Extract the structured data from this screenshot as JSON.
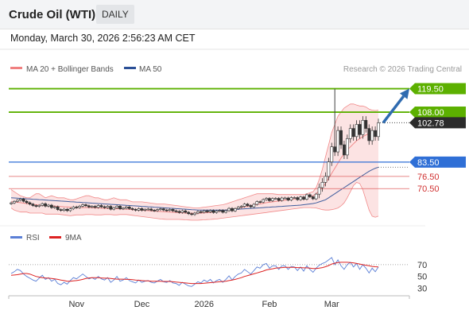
{
  "header": {
    "title": "Crude Oil (WTI)",
    "timeframe": "DAILY"
  },
  "timestamp": "Monday, March 30, 2026 2:56:23 AM CET",
  "colors": {
    "bollinger": "#f08080",
    "ma50": "#2b4f96",
    "resistance": "#5cb000",
    "pivot": "#2f6fd6",
    "support": "#e06060",
    "price_box": "#2c2c2c",
    "arrow": "#2f6bb0",
    "rsi": "#5b7fd6",
    "rsi_ma": "#dd2222"
  },
  "chart_data": [
    {
      "type": "candlestick",
      "legend": [
        {
          "label": "MA 20 + Bollinger Bands",
          "color": "#f08080"
        },
        {
          "label": "MA 50",
          "color": "#2b4f96"
        }
      ],
      "credit": "Research © 2026 Trading Central",
      "x_ticks": [
        "Nov",
        "Dec",
        "2026",
        "Feb",
        "Mar"
      ],
      "ylim": [
        55,
        124
      ],
      "levels": [
        {
          "value": 119.5,
          "label": "119.50",
          "kind": "resistance"
        },
        {
          "value": 108.0,
          "label": "108.00",
          "kind": "resistance"
        },
        {
          "value": 102.78,
          "label": "102.78",
          "kind": "last_price"
        },
        {
          "value": 83.5,
          "label": "83.50",
          "kind": "pivot"
        },
        {
          "value": 76.5,
          "label": "76.50",
          "kind": "support"
        },
        {
          "value": 70.5,
          "label": "70.50",
          "kind": "support"
        }
      ],
      "forecast": {
        "from": 102.78,
        "to": 119.5,
        "direction": "up"
      },
      "close": [
        63.5,
        64.2,
        64.8,
        65.4,
        64.3,
        63.6,
        62.9,
        62.2,
        61.8,
        62.3,
        63.1,
        61.9,
        62.4,
        61.2,
        61.6,
        60.2,
        59.8,
        60.4,
        59.7,
        60.6,
        61.5,
        61.2,
        61.9,
        62.6,
        62.1,
        61.5,
        61.8,
        61.3,
        62.2,
        61.6,
        61.2,
        61.8,
        60.4,
        61.1,
        61.9,
        60.6,
        60.9,
        61.5,
        60.7,
        60.3,
        59.9,
        60.7,
        59.9,
        60.3,
        60.5,
        59.9,
        59.7,
        60.2,
        60.6,
        60.0,
        59.8,
        60.3,
        59.6,
        59.3,
        58.8,
        59.6,
        58.9,
        58.2,
        57.8,
        58.5,
        59.2,
        58.9,
        59.6,
        59.1,
        59.7,
        58.8,
        59.5,
        59.8,
        58.9,
        59.7,
        60.8,
        59.6,
        60.7,
        61.4,
        61.8,
        62.9,
        62.2,
        61.6,
        62.8,
        64.1,
        63.9,
        65.1,
        65.7,
        64.6,
        65.6,
        65.7,
        64.7,
        65.9,
        65.9,
        64.9,
        66.1,
        66.1,
        65.1,
        66.4,
        65.3,
        67.5,
        66.5,
        65.5,
        67.8,
        71.0,
        73.6,
        76.5,
        83.6,
        91.0,
        88.5,
        99.0,
        92.0,
        87.0,
        95.0,
        100.0,
        96.0,
        102.0,
        97.0,
        104.0,
        100.0,
        94.0,
        99.0,
        96.0,
        102.78
      ],
      "bb_upper": [
        70,
        69,
        68,
        67,
        66.5,
        66,
        66,
        67,
        68,
        68,
        67,
        66,
        66.5,
        67,
        66.5,
        66,
        66,
        66,
        65.5,
        65,
        65,
        65.5,
        66,
        66.5,
        67,
        67,
        66.5,
        66,
        66,
        65.5,
        65,
        65,
        65.5,
        66,
        65.5,
        65,
        65,
        65,
        64.5,
        64,
        64,
        64,
        64,
        63.8,
        63.6,
        63.4,
        63.2,
        63,
        63,
        63,
        62.8,
        62.6,
        62.4,
        62.2,
        62,
        61.8,
        61.6,
        61.4,
        61.2,
        61,
        61,
        61.2,
        61.4,
        61.6,
        61.8,
        62,
        62.2,
        62.4,
        62.6,
        63,
        63.5,
        64,
        64.5,
        65,
        65.5,
        66,
        66.5,
        67,
        67.5,
        68,
        68,
        68,
        68,
        68,
        68,
        67.8,
        67.6,
        67.6,
        67.6,
        67.6,
        67.6,
        67.6,
        67.6,
        67.6,
        67.6,
        68,
        68.5,
        69,
        71,
        75,
        80,
        86,
        92,
        98,
        102,
        106,
        108,
        110,
        111,
        112,
        112,
        111.5,
        111,
        111,
        110.5,
        109.5,
        109,
        108.8,
        109
      ],
      "bb_lower": [
        61,
        60,
        59.5,
        59,
        59,
        59,
        58.5,
        58.5,
        58.5,
        58.5,
        58.5,
        58,
        58,
        58,
        58,
        58,
        57.8,
        57.6,
        57.4,
        57.2,
        57.4,
        57.6,
        57.6,
        57.6,
        57.8,
        57.8,
        57.8,
        57.6,
        57.6,
        57.6,
        57.8,
        57.8,
        57.8,
        57.6,
        57.6,
        57.8,
        57.8,
        57.8,
        57.6,
        57.4,
        57.2,
        57,
        56.8,
        56.6,
        56.4,
        56.2,
        56,
        55.8,
        55.6,
        55.5,
        55.4,
        55.4,
        55.4,
        55.4,
        55.4,
        55.3,
        55.2,
        55.1,
        55,
        55,
        55,
        55.1,
        55.2,
        55.3,
        55.4,
        55.5,
        55.6,
        55.8,
        56,
        56.2,
        56.4,
        56.6,
        56.8,
        57,
        57.2,
        57.4,
        57.6,
        57.8,
        58,
        58.2,
        58.4,
        58.6,
        58.8,
        59,
        59.2,
        59.4,
        59.6,
        59.8,
        60,
        60.2,
        60.4,
        60.6,
        60.8,
        61,
        61.2,
        61.2,
        61.2,
        61.1,
        61,
        60.6,
        60.2,
        60,
        60,
        60.2,
        60.5,
        61,
        62,
        63.5,
        66,
        69,
        72,
        73.5,
        73,
        70,
        65,
        60,
        57,
        56.5,
        57
      ],
      "ma20": [
        64,
        64,
        63.8,
        63.6,
        63.4,
        63.2,
        63,
        62.8,
        62.6,
        62.4,
        62.3,
        62.2,
        62.1,
        62,
        61.9,
        61.8,
        61.7,
        61.6,
        61.5,
        61.4,
        61.3,
        61.2,
        61.2,
        61.2,
        61.2,
        61.2,
        61.1,
        61,
        61,
        60.9,
        60.8,
        60.8,
        60.7,
        60.7,
        60.6,
        60.6,
        60.5,
        60.4,
        60.3,
        60.2,
        60.1,
        60,
        59.9,
        59.8,
        59.7,
        59.6,
        59.5,
        59.4,
        59.3,
        59.2,
        59.1,
        59,
        58.9,
        58.8,
        58.7,
        58.6,
        58.5,
        58.4,
        58.4,
        58.4,
        58.4,
        58.5,
        58.6,
        58.7,
        58.8,
        59,
        59.2,
        59.4,
        59.6,
        59.8,
        60,
        60.3,
        60.6,
        60.9,
        61.2,
        61.5,
        61.8,
        62.1,
        62.4,
        62.7,
        63,
        63.3,
        63.6,
        63.8,
        64,
        64.2,
        64.4,
        64.6,
        64.8,
        65,
        65.2,
        65.4,
        65.6,
        65.8,
        66,
        66.3,
        66.6,
        67,
        68,
        69.5,
        71,
        73,
        75.5,
        78,
        80.5,
        83,
        85.5,
        87.5,
        89.5,
        91,
        92.5,
        94,
        95,
        96,
        96.8,
        97.5,
        98,
        98.5,
        99
      ],
      "ma50": [
        66,
        65.9,
        65.8,
        65.7,
        65.6,
        65.5,
        65.4,
        65.3,
        65.2,
        65.1,
        65,
        64.9,
        64.8,
        64.7,
        64.6,
        64.5,
        64.4,
        64.3,
        64.2,
        64.1,
        64,
        63.9,
        63.8,
        63.7,
        63.6,
        63.5,
        63.4,
        63.3,
        63.2,
        63.1,
        63,
        62.9,
        62.8,
        62.7,
        62.6,
        62.5,
        62.4,
        62.3,
        62.2,
        62.1,
        62,
        61.9,
        61.8,
        61.7,
        61.6,
        61.5,
        61.4,
        61.3,
        61.2,
        61.1,
        61,
        60.9,
        60.8,
        60.7,
        60.6,
        60.5,
        60.4,
        60.3,
        60.2,
        60.1,
        60,
        60,
        60,
        60,
        60,
        60,
        60,
        60,
        60,
        60,
        60.1,
        60.2,
        60.3,
        60.4,
        60.5,
        60.6,
        60.7,
        60.8,
        60.9,
        61,
        61.1,
        61.2,
        61.3,
        61.4,
        61.5,
        61.6,
        61.7,
        61.8,
        61.9,
        62,
        62.1,
        62.2,
        62.3,
        62.4,
        62.6,
        62.8,
        63,
        63.2,
        63.5,
        64,
        64.5,
        65,
        66,
        67,
        68,
        69,
        70,
        71,
        72,
        73,
        74,
        75,
        76,
        77,
        78,
        79,
        79.8,
        80.5,
        81
      ],
      "high_spike_value": 119.5
    },
    {
      "type": "line",
      "legend": [
        {
          "label": "RSI",
          "color": "#5b7fd6"
        },
        {
          "label": "9MA",
          "color": "#dd2222"
        }
      ],
      "y_ticks": [
        70,
        50,
        30
      ],
      "ylim": [
        20,
        90
      ],
      "overbought": 70,
      "rsi": [
        55,
        58,
        62,
        60,
        54,
        50,
        47,
        44,
        42,
        47,
        52,
        45,
        48,
        42,
        45,
        38,
        36,
        40,
        37,
        43,
        48,
        46,
        50,
        54,
        50,
        46,
        48,
        45,
        50,
        46,
        44,
        48,
        40,
        44,
        50,
        42,
        44,
        48,
        43,
        41,
        39,
        44,
        40,
        42,
        43,
        40,
        39,
        42,
        45,
        41,
        40,
        43,
        39,
        38,
        35,
        40,
        37,
        34,
        33,
        37,
        41,
        39,
        44,
        41,
        45,
        39,
        43,
        45,
        40,
        45,
        51,
        44,
        50,
        54,
        56,
        62,
        58,
        54,
        60,
        66,
        64,
        70,
        72,
        64,
        68,
        68,
        62,
        68,
        68,
        62,
        67,
        66,
        60,
        66,
        59,
        68,
        62,
        57,
        64,
        69,
        72,
        74,
        78,
        82,
        70,
        78,
        68,
        62,
        70,
        74,
        66,
        72,
        62,
        70,
        64,
        56,
        64,
        58,
        66
      ],
      "rsi_ma": [
        52,
        52.5,
        53,
        54,
        55,
        55,
        54,
        52,
        50,
        49,
        48,
        47.5,
        47,
        46.5,
        46,
        45,
        44,
        43,
        42,
        42,
        42.5,
        43,
        44,
        45,
        46.5,
        47.5,
        48,
        48,
        48,
        47.5,
        47,
        47,
        46.5,
        46,
        45.5,
        45.5,
        45.5,
        45,
        45,
        44.5,
        44,
        43.5,
        43,
        42.5,
        42.5,
        42,
        42,
        42,
        42,
        41.5,
        41.5,
        41.5,
        41,
        40.5,
        40,
        39.5,
        39,
        38.5,
        38,
        38,
        38,
        38,
        38.5,
        39,
        39.5,
        40,
        40.5,
        41,
        41.5,
        42,
        43,
        44,
        45,
        46.5,
        48,
        50,
        51.5,
        53,
        54.5,
        56,
        57.5,
        59,
        61,
        62,
        63,
        64,
        64.5,
        65,
        65.5,
        65.5,
        65.5,
        65.5,
        65,
        65,
        64.5,
        64.5,
        64,
        63.5,
        63.5,
        64,
        65,
        66.5,
        68.5,
        71,
        72.5,
        73.5,
        74,
        74,
        74,
        73.5,
        73,
        72,
        71,
        70,
        69,
        68,
        67,
        66.5,
        66
      ]
    }
  ]
}
